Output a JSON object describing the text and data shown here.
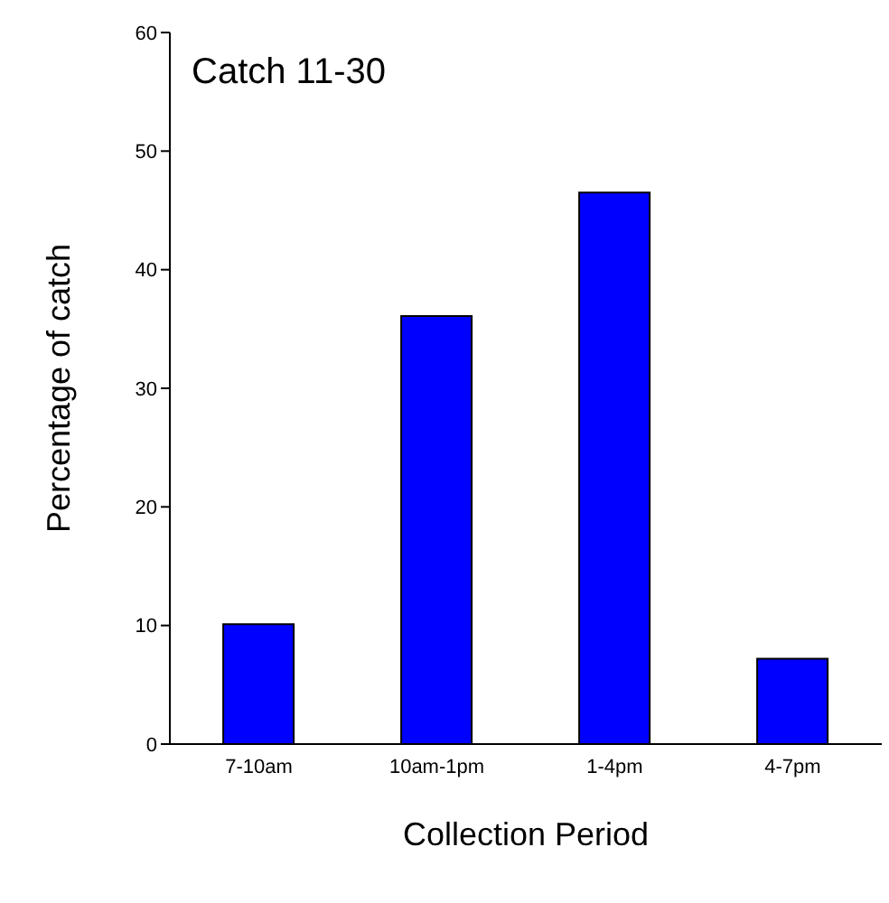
{
  "chart_data": {
    "type": "bar",
    "title": "Catch 11-30",
    "xlabel": "Collection Period",
    "ylabel": "Percentage of catch",
    "categories": [
      "7-10am",
      "10am-1pm",
      "1-4pm",
      "4-7pm"
    ],
    "values": [
      10.1,
      36.1,
      46.5,
      7.2
    ],
    "color": "#0000ff",
    "ylim": [
      0,
      60
    ],
    "yticks": [
      0,
      10,
      20,
      30,
      40,
      50,
      60
    ],
    "grid": false,
    "legend": false
  }
}
